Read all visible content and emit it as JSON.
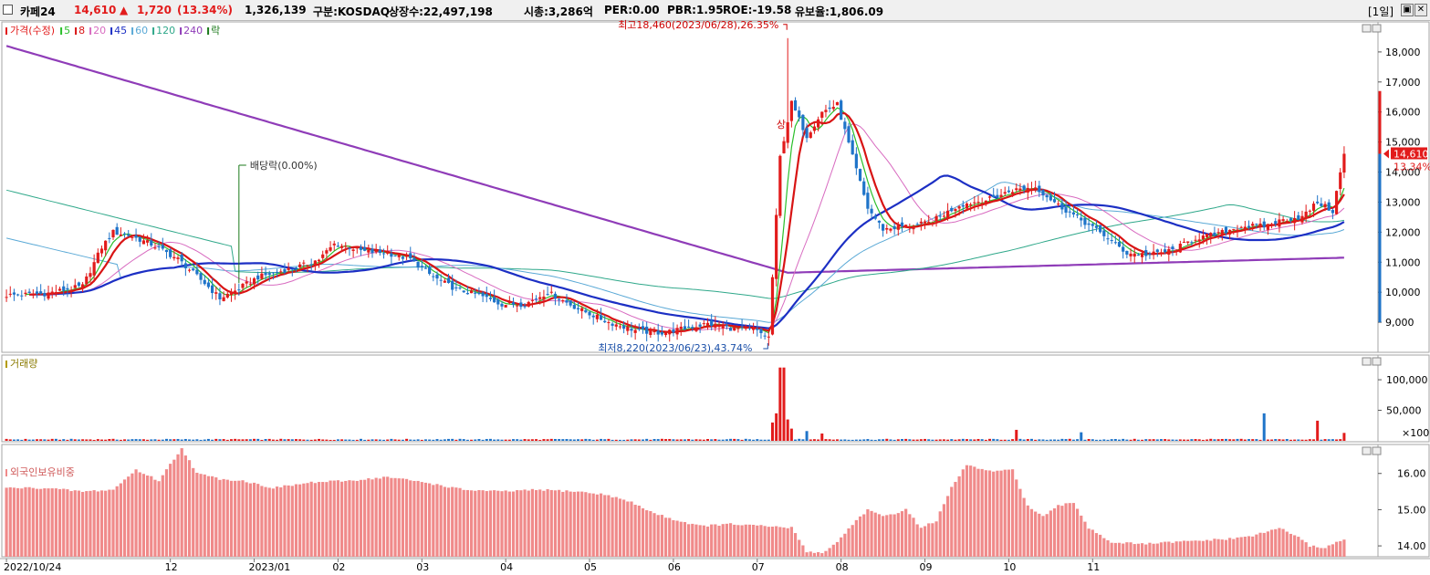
{
  "header": {
    "stock_name": "카페24",
    "price": "14,610",
    "change_arrow": "▲",
    "change": "1,720",
    "change_pct": "(13.34%)",
    "volume": "1,326,139",
    "market": "구분:KOSDAQ",
    "shares": "상장수:22,497,198",
    "market_cap": "시총:3,286억",
    "per": "PER:0.00",
    "pbr": "PBR:1.95",
    "roe": "ROE:-19.58",
    "retention": "유보율:1,806.09",
    "period": "[1일]"
  },
  "legend": {
    "price_label": "가격(수정)",
    "ma_labels": [
      "5",
      "8",
      "20",
      "45",
      "60",
      "120",
      "240"
    ],
    "ex_label": "락",
    "volume_label": "거래량",
    "foreign_label": "외국인보유비중"
  },
  "annotations": {
    "high": "최고18,460(2023/06/28),26.35%",
    "low": "최저8,220(2023/06/23),43.74%",
    "dividend": "배당락(0.00%)",
    "upper_limit": "상",
    "last_price": "14,610",
    "last_pct": "13.34%"
  },
  "colors": {
    "up": "#e21b1b",
    "down": "#1f74c9",
    "ma5": "#2bbf2b",
    "ma8": "#d81414",
    "ma20": "#d86bc0",
    "ma45": "#1c2fc4",
    "ma60": "#5aa9d6",
    "ma120": "#2fa88a",
    "ma240": "#8f3cb8",
    "foreign_bar": "#f08a8a"
  },
  "chart_data": [
    {
      "type": "candlestick",
      "title": "카페24",
      "x_tick_labels": [
        "2022/10/24",
        "12",
        "2023/01",
        "02",
        "03",
        "04",
        "05",
        "06",
        "07",
        "08",
        "09",
        "10",
        "11"
      ],
      "ylim": [
        8000,
        19000
      ],
      "y_ticks": [
        "9,000",
        "10,000",
        "11,000",
        "12,000",
        "13,000",
        "14,000",
        "15,000",
        "16,000",
        "17,000",
        "18,000"
      ],
      "price_path": [
        [
          0,
          9900
        ],
        [
          10,
          9950
        ],
        [
          20,
          10200
        ],
        [
          25,
          11500
        ],
        [
          28,
          12000
        ],
        [
          32,
          11900
        ],
        [
          38,
          11600
        ],
        [
          45,
          11100
        ],
        [
          52,
          10300
        ],
        [
          56,
          9800
        ],
        [
          60,
          10050
        ],
        [
          66,
          10500
        ],
        [
          72,
          10700
        ],
        [
          78,
          10900
        ],
        [
          82,
          11100
        ],
        [
          86,
          11600
        ],
        [
          90,
          11500
        ],
        [
          94,
          11350
        ],
        [
          100,
          11300
        ],
        [
          106,
          11100
        ],
        [
          112,
          10500
        ],
        [
          118,
          10100
        ],
        [
          124,
          9900
        ],
        [
          130,
          9600
        ],
        [
          136,
          9600
        ],
        [
          142,
          10000
        ],
        [
          150,
          9450
        ],
        [
          158,
          9000
        ],
        [
          166,
          8700
        ],
        [
          172,
          8650
        ],
        [
          178,
          8800
        ],
        [
          184,
          8950
        ],
        [
          190,
          8800
        ],
        [
          196,
          8750
        ],
        [
          200,
          8500
        ],
        [
          203,
          14500
        ],
        [
          206,
          16300
        ],
        [
          210,
          15200
        ],
        [
          214,
          16000
        ],
        [
          218,
          16250
        ],
        [
          222,
          14500
        ],
        [
          226,
          12800
        ],
        [
          230,
          12100
        ],
        [
          236,
          12200
        ],
        [
          242,
          12300
        ],
        [
          250,
          12900
        ],
        [
          258,
          13100
        ],
        [
          264,
          13400
        ],
        [
          270,
          13500
        ],
        [
          276,
          12900
        ],
        [
          282,
          12400
        ],
        [
          288,
          11900
        ],
        [
          294,
          11300
        ],
        [
          300,
          11250
        ],
        [
          306,
          11400
        ],
        [
          312,
          11800
        ],
        [
          318,
          11950
        ],
        [
          324,
          12200
        ],
        [
          330,
          12200
        ],
        [
          336,
          12450
        ],
        [
          340,
          12500
        ],
        [
          344,
          13000
        ],
        [
          348,
          12700
        ],
        [
          351,
          14610
        ]
      ],
      "ma_last": {
        "5": 12400,
        "8": 12800,
        "20": 12100,
        "45": 12050,
        "60": 12000,
        "120": 11800,
        "240": 11150
      },
      "high": {
        "value": 18460,
        "date": "2023/06/28",
        "pct": 26.35
      },
      "low": {
        "value": 8220,
        "date": "2023/06/23",
        "pct": 43.74
      },
      "last": {
        "value": 14610,
        "pct": 13.34
      }
    },
    {
      "type": "bar",
      "title": "거래량",
      "unit": "×100",
      "y_ticks": [
        "50,000",
        "100,000"
      ],
      "ylim": [
        0,
        130000
      ],
      "spikes": [
        [
          201,
          30000
        ],
        [
          202,
          45000
        ],
        [
          203,
          120000
        ],
        [
          204,
          120000
        ],
        [
          205,
          35000
        ],
        [
          206,
          20000
        ],
        [
          210,
          16000
        ],
        [
          214,
          12000
        ],
        [
          265,
          18000
        ],
        [
          282,
          14000
        ],
        [
          330,
          45000
        ],
        [
          344,
          33000
        ],
        [
          351,
          13000
        ]
      ],
      "baseline": 1500
    },
    {
      "type": "bar",
      "title": "외국인보유비중",
      "ylim": [
        13.7,
        16.8
      ],
      "y_ticks": [
        "14.00",
        "15.00",
        "16.00"
      ],
      "path": [
        [
          0,
          15.6
        ],
        [
          10,
          15.6
        ],
        [
          20,
          15.5
        ],
        [
          28,
          15.55
        ],
        [
          34,
          16.1
        ],
        [
          40,
          15.8
        ],
        [
          46,
          16.7
        ],
        [
          50,
          16.0
        ],
        [
          56,
          15.85
        ],
        [
          62,
          15.8
        ],
        [
          70,
          15.6
        ],
        [
          80,
          15.75
        ],
        [
          90,
          15.8
        ],
        [
          100,
          15.9
        ],
        [
          110,
          15.75
        ],
        [
          120,
          15.55
        ],
        [
          130,
          15.5
        ],
        [
          140,
          15.55
        ],
        [
          150,
          15.5
        ],
        [
          158,
          15.4
        ],
        [
          164,
          15.2
        ],
        [
          170,
          14.9
        ],
        [
          176,
          14.7
        ],
        [
          182,
          14.55
        ],
        [
          190,
          14.6
        ],
        [
          198,
          14.55
        ],
        [
          206,
          14.5
        ],
        [
          210,
          13.85
        ],
        [
          214,
          13.8
        ],
        [
          218,
          14.1
        ],
        [
          222,
          14.6
        ],
        [
          226,
          15.0
        ],
        [
          230,
          14.8
        ],
        [
          236,
          15.0
        ],
        [
          240,
          14.5
        ],
        [
          244,
          14.7
        ],
        [
          248,
          15.6
        ],
        [
          252,
          16.25
        ],
        [
          256,
          16.1
        ],
        [
          260,
          16.05
        ],
        [
          264,
          16.1
        ],
        [
          268,
          15.1
        ],
        [
          272,
          14.8
        ],
        [
          276,
          15.1
        ],
        [
          280,
          15.2
        ],
        [
          284,
          14.5
        ],
        [
          290,
          14.1
        ],
        [
          298,
          14.05
        ],
        [
          306,
          14.1
        ],
        [
          314,
          14.15
        ],
        [
          322,
          14.2
        ],
        [
          328,
          14.3
        ],
        [
          334,
          14.5
        ],
        [
          338,
          14.3
        ],
        [
          342,
          14.0
        ],
        [
          346,
          13.95
        ],
        [
          351,
          14.2
        ]
      ]
    }
  ]
}
